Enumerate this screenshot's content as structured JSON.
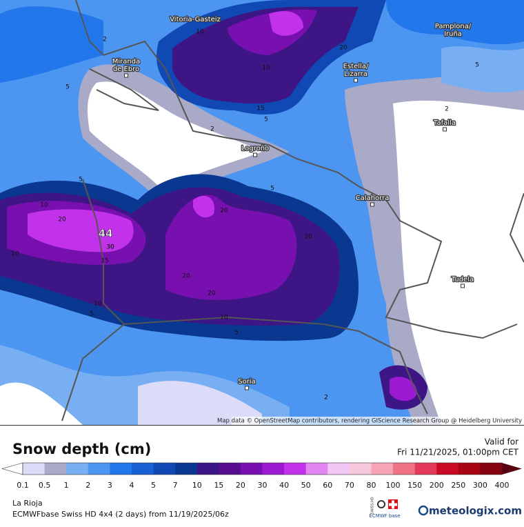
{
  "map": {
    "cities": [
      {
        "lines": [
          "Vitoria-Gasteiz"
        ]
      },
      {
        "lines": [
          "Pamplona/",
          "Iruña"
        ]
      },
      {
        "lines": [
          "Miranda",
          "de Ebro"
        ]
      },
      {
        "lines": [
          "Estella/",
          "Lizarra"
        ]
      },
      {
        "lines": [
          "Tafalla"
        ]
      },
      {
        "lines": [
          "Logroño"
        ]
      },
      {
        "lines": [
          "Calahorra"
        ]
      },
      {
        "lines": [
          "Tudela"
        ]
      },
      {
        "lines": [
          "Soria"
        ]
      }
    ],
    "contour_labels": [
      2,
      10,
      20,
      5,
      10,
      5,
      2,
      5,
      2,
      20,
      10,
      5,
      20,
      10,
      30,
      44,
      30,
      15,
      10,
      5,
      20,
      20,
      20,
      10,
      5,
      15,
      2,
      10,
      5
    ],
    "attribution": "Map data © OpenStreetMap contributors, rendering GIScience Research Group @ Heidelberg University"
  },
  "legend": {
    "title": "Snow depth (cm)",
    "ticks": [
      0.1,
      0.5,
      1,
      2,
      3,
      4,
      5,
      7,
      10,
      15,
      20,
      30,
      40,
      50,
      60,
      70,
      80,
      100,
      150,
      200,
      250,
      300,
      400
    ],
    "colors": [
      "#ffffff",
      "#dcdcf8",
      "#a9a9c8",
      "#78aef2",
      "#4c96f2",
      "#2278ea",
      "#1760d6",
      "#1049b4",
      "#0a3890",
      "#3d1585",
      "#580d8f",
      "#7710ae",
      "#9c1ad2",
      "#c232ea",
      "#e287f2",
      "#f2c6f4",
      "#f7c8dc",
      "#f6a4b6",
      "#f07384",
      "#e23a58",
      "#c80a24",
      "#a80414",
      "#86020f",
      "#5a0010"
    ]
  },
  "valid": {
    "label": "Valid for",
    "time": "Fri 11/21/2025, 01:00pm CET"
  },
  "footer": {
    "region": "La Rioja",
    "model": "ECMWFbase Swiss HD 4x4 (2 days) from  11/19/2025/06z",
    "brand": "meteologix.com",
    "logo_top": "SWISS HD",
    "logo_bottom": "ECMWF base"
  }
}
